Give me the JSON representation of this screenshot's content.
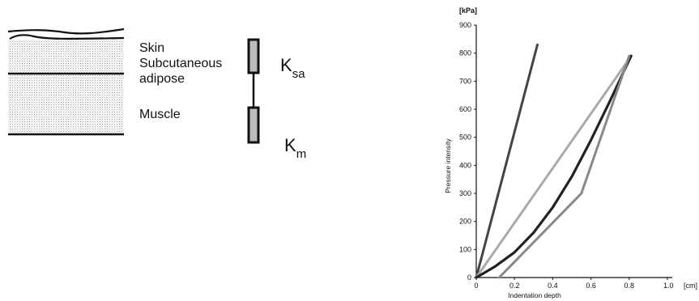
{
  "diagram": {
    "layers": {
      "skin": "Skin",
      "subcutaneous_line1": "Subcutaneous",
      "subcutaneous_line2": "adipose",
      "muscle": "Muscle"
    },
    "springs": {
      "k_sa": {
        "main": "K",
        "sub": "sa"
      },
      "k_m": {
        "main": "K",
        "sub": "m"
      }
    }
  },
  "chart_data": {
    "type": "line",
    "xlabel": "Indentation  depth",
    "x_unit": "[cm]",
    "ylabel": "Pressure   intensity",
    "y_unit": "[kPa]",
    "xlim": [
      0,
      1.0
    ],
    "ylim": [
      0,
      900
    ],
    "x_ticks": [
      "0",
      "0.2",
      "0.4",
      "0.6",
      "0.8",
      "1.0"
    ],
    "y_ticks": [
      "0",
      "100",
      "200",
      "300",
      "400",
      "500",
      "600",
      "700",
      "800",
      "900"
    ],
    "grid": false,
    "series": [
      {
        "color": "#444444",
        "width": 3,
        "points": [
          [
            0,
            0
          ],
          [
            0.32,
            830
          ]
        ]
      },
      {
        "color": "#aaaaaa",
        "width": 3,
        "points": [
          [
            0,
            0
          ],
          [
            0.78,
            760
          ]
        ]
      },
      {
        "color": "#222222",
        "width": 3.2,
        "points": [
          [
            0,
            0
          ],
          [
            0.1,
            40
          ],
          [
            0.2,
            90
          ],
          [
            0.3,
            160
          ],
          [
            0.4,
            250
          ],
          [
            0.5,
            360
          ],
          [
            0.6,
            490
          ],
          [
            0.7,
            630
          ],
          [
            0.81,
            790
          ]
        ]
      },
      {
        "color": "#888888",
        "width": 3,
        "points": [
          [
            0.12,
            0
          ],
          [
            0.55,
            300
          ],
          [
            0.8,
            790
          ]
        ]
      }
    ]
  }
}
